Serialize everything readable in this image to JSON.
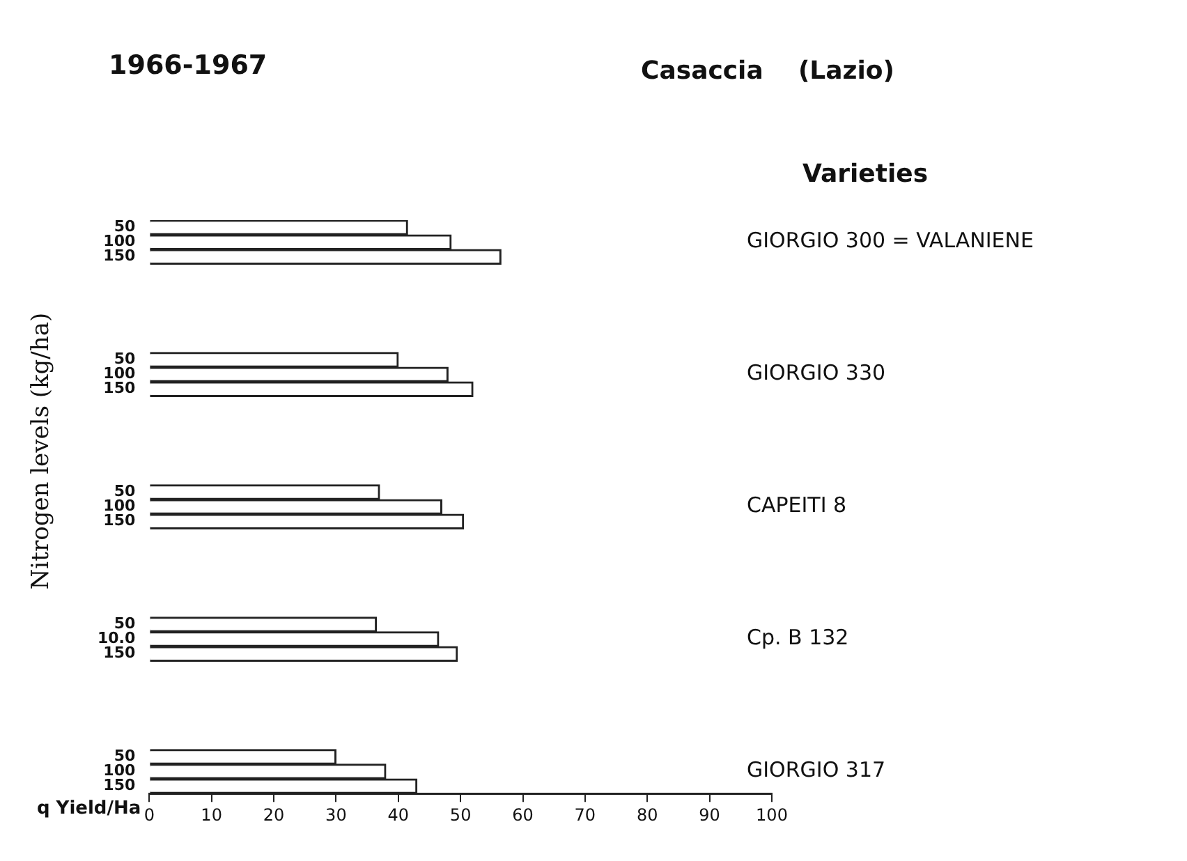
{
  "chart_data": {
    "type": "bar",
    "orientation": "horizontal",
    "title": "1966-1967",
    "subtitle": "Casaccia    (Lazio)",
    "ylabel": "Nitrogen levels (kg/ha)",
    "xlabel": "q Yield/Ha",
    "legend_title": "Varieties",
    "annotations": [
      "GIORGIO 300 = VALANIENE",
      "GIORGIO 330",
      "CAPEITI 8",
      "Cp. B 132",
      "GIORGIO 317"
    ],
    "categories": [
      "50",
      "100",
      "150",
      null,
      null,
      null,
      null,
      null,
      null,
      "50",
      "100",
      "150",
      null,
      null,
      null,
      null,
      null,
      null,
      "50",
      "100",
      "150",
      null,
      null,
      null,
      null,
      null,
      null,
      "50",
      "10.0",
      "150",
      null,
      null,
      null,
      null,
      null,
      null,
      "50",
      "100",
      "150"
    ],
    "values": [
      41.5,
      48.5,
      56.5,
      null,
      null,
      null,
      null,
      null,
      null,
      40,
      48,
      52,
      null,
      null,
      null,
      null,
      null,
      null,
      37,
      47,
      50.5,
      null,
      null,
      null,
      null,
      null,
      null,
      36.5,
      46.5,
      49.5,
      null,
      null,
      null,
      null,
      null,
      null,
      30,
      38,
      43
    ],
    "color": "#ffffff",
    "xlim": [
      0,
      100
    ],
    "xticks": [
      0,
      10,
      20,
      30,
      40,
      50,
      60,
      70,
      80,
      90,
      100
    ],
    "grid": false,
    "legend": false
  }
}
